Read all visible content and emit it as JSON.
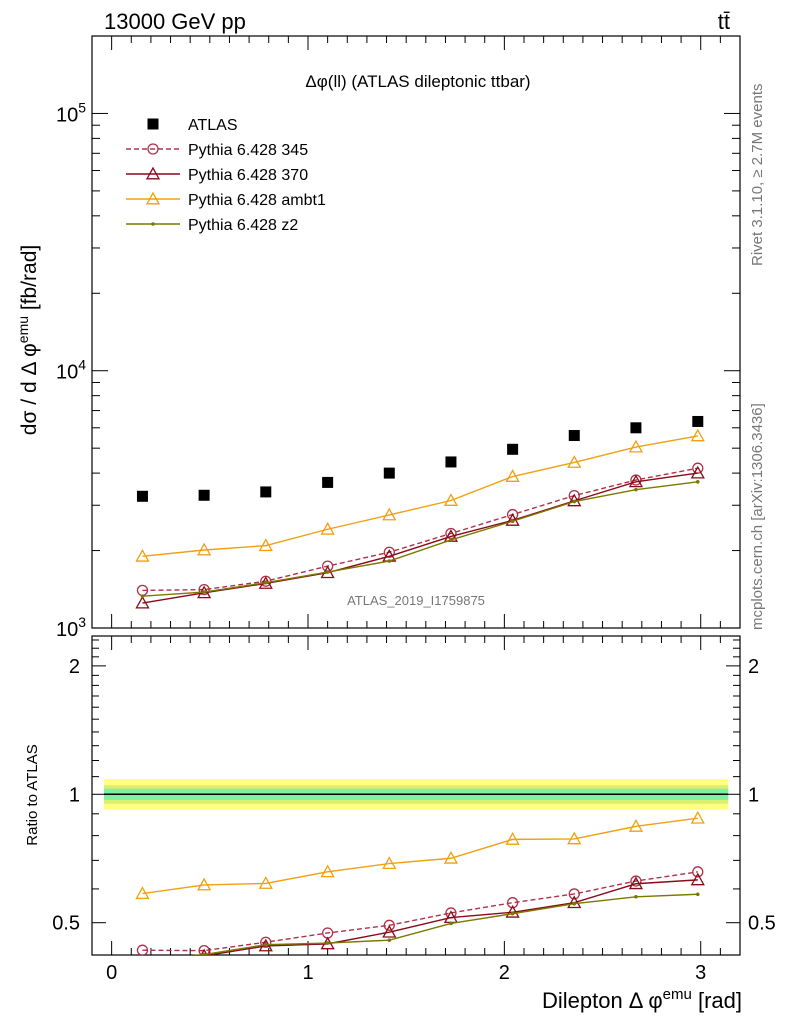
{
  "header": {
    "energy_label": "13000 GeV pp",
    "process_label": "tt̄"
  },
  "side_labels": {
    "rivet": "Rivet 3.1.10, ≥ 2.7M events",
    "mcplots": "mcplots.cern.ch [arXiv:1306.3436]"
  },
  "chart_data": [
    {
      "type": "scatter",
      "title": "Δφ(ll) (ATLAS dileptonic ttbar)",
      "xlabel": "Dilepton Δ φemu [rad]",
      "ylabel": "dσ / d Δ φemu [fb/rad]",
      "yscale": "log",
      "ylim": [
        1000,
        200000
      ],
      "xlim": [
        -0.1,
        3.2
      ],
      "ytick_labels": [
        "10^3",
        "10^4",
        "10^5"
      ],
      "watermark": "ATLAS_2019_I1759875",
      "legend_position": "top-left",
      "x": [
        0.157,
        0.471,
        0.785,
        1.1,
        1.414,
        1.728,
        2.042,
        2.356,
        2.67,
        2.985
      ],
      "series": [
        {
          "name": "ATLAS",
          "color": "#000000",
          "marker": "square",
          "values": [
            3250,
            3280,
            3380,
            3680,
            4000,
            4420,
            4950,
            5600,
            6000,
            6350
          ]
        },
        {
          "name": "Pythia 6.428 345",
          "color": "#b0304a",
          "marker": "circle",
          "dashed": true,
          "values": [
            1400,
            1410,
            1520,
            1740,
            1970,
            2330,
            2760,
            3270,
            3760,
            4180
          ]
        },
        {
          "name": "Pythia 6.428 370",
          "color": "#8b0a1a",
          "marker": "triangle",
          "values": [
            1250,
            1370,
            1490,
            1640,
            1900,
            2270,
            2620,
            3120,
            3700,
            4000
          ]
        },
        {
          "name": "Pythia 6.428 ambt1",
          "color": "#f0a010",
          "marker": "triangle",
          "values": [
            1900,
            2010,
            2090,
            2420,
            2750,
            3130,
            3880,
            4400,
            5050,
            5580
          ]
        },
        {
          "name": "Pythia 6.428 z2",
          "color": "#7a7a00",
          "marker": "dot",
          "values": [
            1330,
            1380,
            1500,
            1650,
            1820,
            2200,
            2600,
            3100,
            3450,
            3700
          ]
        }
      ]
    },
    {
      "type": "line",
      "ylabel": "Ratio to ATLAS",
      "yscale": "log",
      "ylim": [
        0.42,
        2.35
      ],
      "xlim": [
        -0.1,
        3.2
      ],
      "xlabel": "Dilepton Δ φemu [rad]",
      "ytick_labels": [
        "0.5",
        "1",
        "2"
      ],
      "xtick_labels": [
        "0",
        "1",
        "2",
        "3"
      ],
      "reference_band": {
        "inner": [
          0.97,
          1.03
        ],
        "middle": [
          0.95,
          1.05
        ],
        "outer": [
          0.92,
          1.085
        ]
      },
      "x": [
        0.157,
        0.471,
        0.785,
        1.1,
        1.414,
        1.728,
        2.042,
        2.356,
        2.67,
        2.985
      ],
      "series": [
        {
          "name": "Pythia 6.428 345",
          "values": [
            0.431,
            0.43,
            0.45,
            0.473,
            0.493,
            0.527,
            0.557,
            0.584,
            0.626,
            0.658
          ]
        },
        {
          "name": "Pythia 6.428 370",
          "values": [
            0.385,
            0.418,
            0.441,
            0.446,
            0.475,
            0.514,
            0.529,
            0.557,
            0.617,
            0.63
          ]
        },
        {
          "name": "Pythia 6.428 ambt1",
          "values": [
            0.585,
            0.613,
            0.618,
            0.658,
            0.688,
            0.708,
            0.784,
            0.786,
            0.841,
            0.879
          ]
        },
        {
          "name": "Pythia 6.428 z2",
          "values": [
            0.409,
            0.421,
            0.444,
            0.448,
            0.455,
            0.498,
            0.525,
            0.554,
            0.575,
            0.583
          ]
        }
      ]
    }
  ]
}
